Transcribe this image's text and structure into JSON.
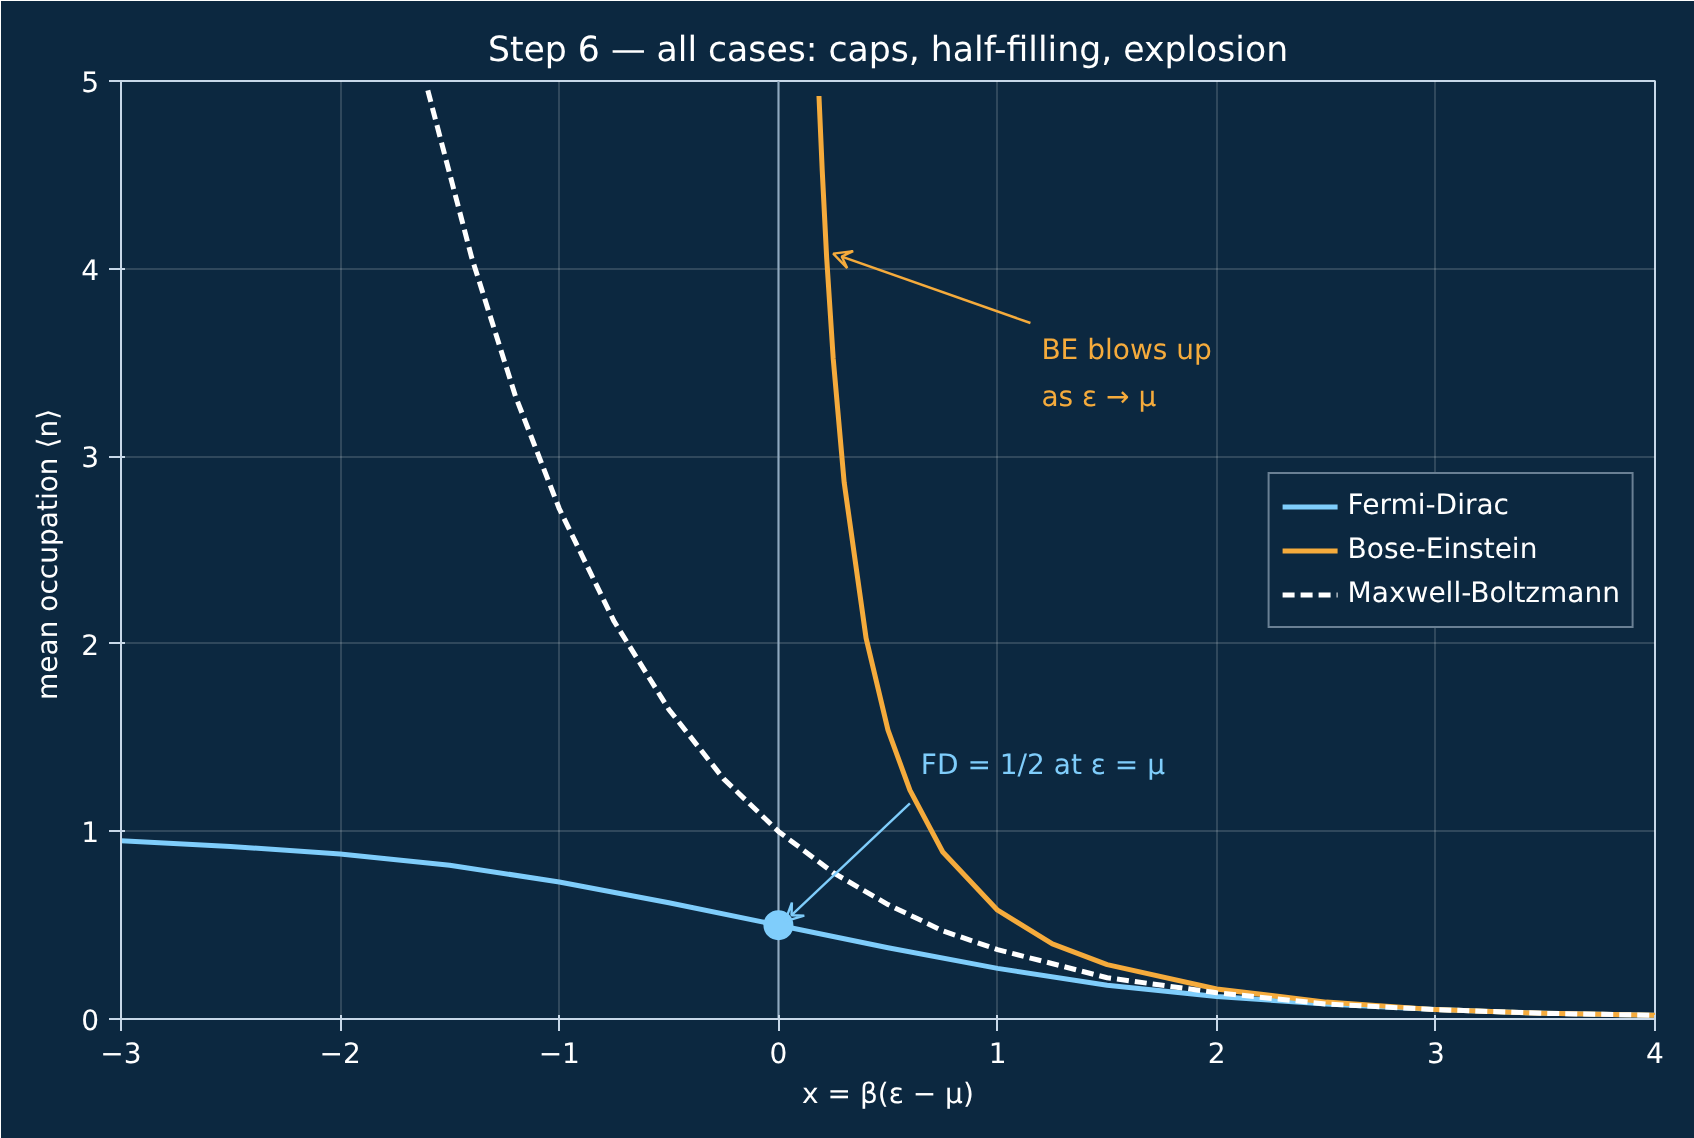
{
  "chart_data": {
    "type": "line",
    "title": "Step 6 — all cases: caps, half-filling, explosion",
    "xlabel": "x = β(ε − μ)",
    "ylabel": "mean occupation  ⟨n⟩",
    "xlim": [
      -3,
      4
    ],
    "ylim": [
      0,
      5
    ],
    "xticks": [
      -3,
      -2,
      -1,
      0,
      1,
      2,
      3,
      4
    ],
    "yticks": [
      0,
      1,
      2,
      3,
      4,
      5
    ],
    "grid": true,
    "legend": "right",
    "series": [
      {
        "name": "Fermi-Dirac",
        "color": "#7fcdfb",
        "x": [
          -3,
          -2.5,
          -2,
          -1.5,
          -1,
          -0.5,
          0,
          0.5,
          1,
          1.5,
          2,
          2.5,
          3,
          3.5,
          4
        ],
        "values": [
          0.95,
          0.92,
          0.88,
          0.82,
          0.73,
          0.62,
          0.5,
          0.38,
          0.27,
          0.18,
          0.12,
          0.08,
          0.05,
          0.03,
          0.02
        ]
      },
      {
        "name": "Bose-Einstein",
        "color": "#f5ab3c",
        "x": [
          0.185,
          0.2,
          0.22,
          0.25,
          0.3,
          0.4,
          0.5,
          0.6,
          0.75,
          1,
          1.25,
          1.5,
          2,
          2.5,
          3,
          3.5,
          4
        ],
        "values": [
          4.92,
          4.52,
          4.06,
          3.52,
          2.86,
          2.03,
          1.54,
          1.22,
          0.89,
          0.58,
          0.4,
          0.29,
          0.16,
          0.09,
          0.05,
          0.03,
          0.02
        ]
      },
      {
        "name": "Maxwell-Boltzmann",
        "color": "#ffffff",
        "line_style": "dashed",
        "x": [
          -1.6,
          -1.4,
          -1.2,
          -1,
          -0.75,
          -0.5,
          -0.25,
          0,
          0.25,
          0.5,
          0.75,
          1,
          1.5,
          2,
          2.5,
          3,
          3.5,
          4
        ],
        "values": [
          4.95,
          4.06,
          3.32,
          2.72,
          2.12,
          1.65,
          1.28,
          1.0,
          0.78,
          0.61,
          0.47,
          0.37,
          0.22,
          0.14,
          0.08,
          0.05,
          0.03,
          0.02
        ]
      },
      {
        "type": "scatter",
        "color": "#7fcdfb",
        "marker": "circle",
        "x": [
          0
        ],
        "values": [
          0.5
        ]
      }
    ],
    "ref_lines": [
      {
        "axis": "x",
        "value": 0,
        "color": "#8fa9c0"
      }
    ],
    "annotations": [
      {
        "text": "BE blows up\nas ε → μ",
        "x": 0.22,
        "y": 4.06
      },
      {
        "text": "FD = 1/2 at ε = μ",
        "x": 0.0,
        "y": 0.5
      }
    ]
  }
}
